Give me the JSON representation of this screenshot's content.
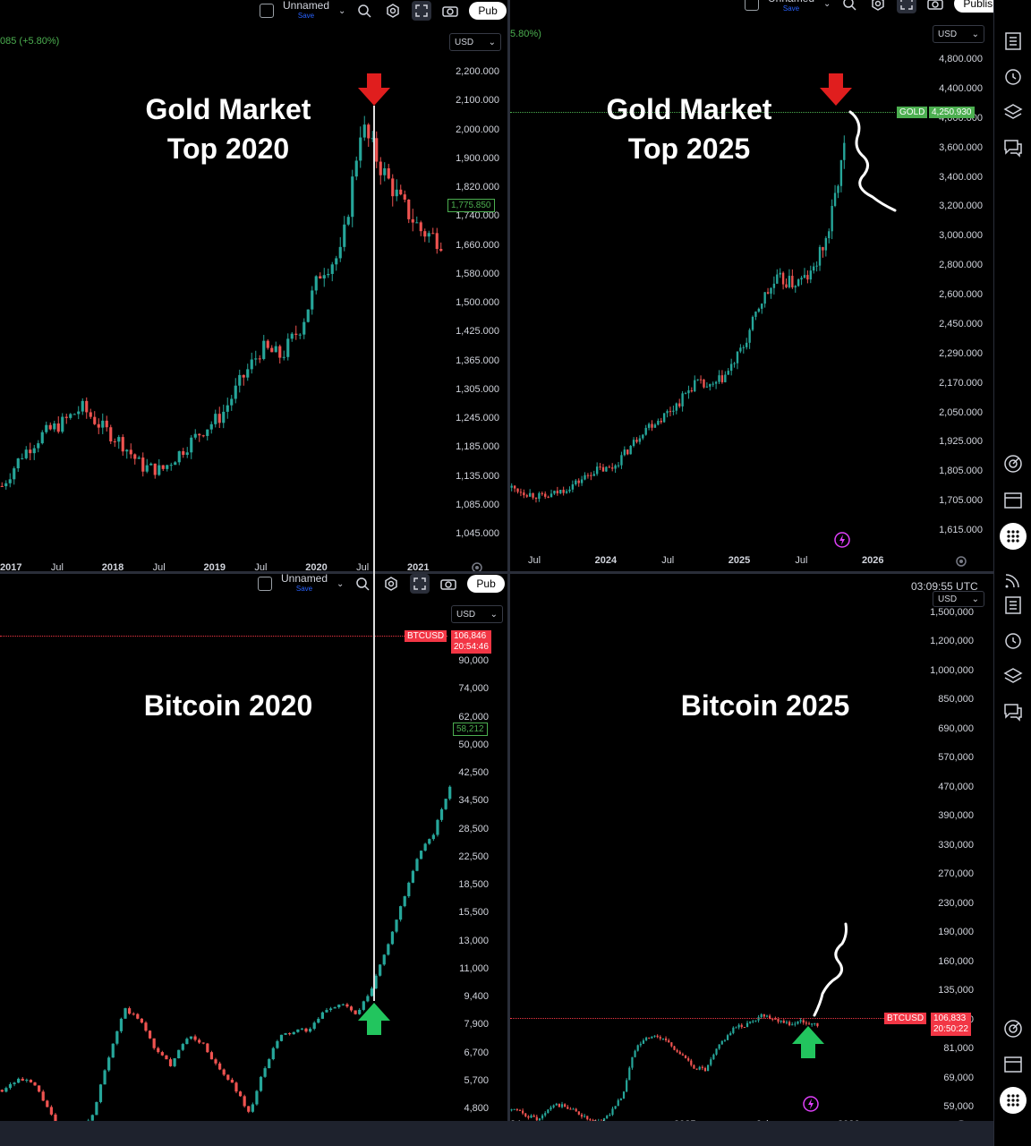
{
  "toolbar": {
    "layout_name": "Unnamed",
    "save_label": "Save",
    "publish_label": "Publish",
    "publish_label_short": "Pub"
  },
  "top_left": {
    "title_line1": "Gold Market",
    "title_line2": "Top 2020",
    "change_text": "085 (+5.80%)",
    "currency": "USD",
    "price_tag": "1,775.850",
    "y_ticks": [
      "2,200.000",
      "2,100.000",
      "2,000.000",
      "1,900.000",
      "1,820.000",
      "1,740.000",
      "1,660.000",
      "1,580.000",
      "1,500.000",
      "1,425.000",
      "1,365.000",
      "1,305.000",
      "1,245.000",
      "1,185.000",
      "1,135.000",
      "1,085.000",
      "1,045.000"
    ],
    "x_ticks": [
      {
        "label": "2017",
        "major": true
      },
      {
        "label": "Jul",
        "major": false
      },
      {
        "label": "2018",
        "major": true
      },
      {
        "label": "Jul",
        "major": false
      },
      {
        "label": "2019",
        "major": true
      },
      {
        "label": "Jul",
        "major": false
      },
      {
        "label": "2020",
        "major": true
      },
      {
        "label": "Jul",
        "major": false
      },
      {
        "label": "2021",
        "major": true
      }
    ]
  },
  "top_right": {
    "title_line1": "Gold Market",
    "title_line2": "Top 2025",
    "change_text": "5.80%)",
    "currency": "USD",
    "symbol_tag": "GOLD",
    "price_tag": "4,250.930",
    "y_ticks": [
      "4,800.000",
      "4,400.000",
      "4,000.000",
      "3,600.000",
      "3,400.000",
      "3,200.000",
      "3,000.000",
      "2,800.000",
      "2,600.000",
      "2,450.000",
      "2,290.000",
      "2,170.000",
      "2,050.000",
      "1,925.000",
      "1,805.000",
      "1,705.000",
      "1,615.000"
    ],
    "x_ticks": [
      {
        "label": "Jul",
        "major": false
      },
      {
        "label": "2024",
        "major": true
      },
      {
        "label": "Jul",
        "major": false
      },
      {
        "label": "2025",
        "major": true
      },
      {
        "label": "Jul",
        "major": false
      },
      {
        "label": "2026",
        "major": true
      }
    ]
  },
  "bottom_left": {
    "title": "Bitcoin 2020",
    "currency": "USD",
    "symbol_tag": "BTCUSD",
    "price_tag": "106,846",
    "countdown": "20:54:46",
    "last_price_tag": "58,212",
    "y_ticks": [
      "90,000",
      "74,000",
      "62,000",
      "50,000",
      "42,500",
      "34,500",
      "28,500",
      "22,500",
      "18,500",
      "15,500",
      "13,000",
      "11,000",
      "9,400",
      "7,900",
      "6,700",
      "5,700",
      "4,800"
    ],
    "x_ticks": [
      {
        "label": "Jul",
        "major": false
      },
      {
        "label": "2019",
        "major": true
      },
      {
        "label": "Jul",
        "major": false
      },
      {
        "label": "2020",
        "major": true
      },
      {
        "label": "Jul",
        "major": false
      },
      {
        "label": "2021",
        "major": true
      }
    ]
  },
  "bottom_right": {
    "title": "Bitcoin 2025",
    "clock": "03:09:55 UTC",
    "currency": "USD",
    "symbol_tag": "BTCUSD",
    "price_tag": "106,833",
    "countdown": "20:50:22",
    "y_ticks": [
      "1,500,000",
      "1,200,000",
      "1,000,000",
      "850,000",
      "690,000",
      "570,000",
      "470,000",
      "390,000",
      "330,000",
      "270,000",
      "230,000",
      "190,000",
      "160,000",
      "135,000",
      "115,000",
      "81,000",
      "69,000",
      "59,000"
    ],
    "x_ticks": [
      {
        "label": "24",
        "major": false
      },
      {
        "label": "Jul",
        "major": false
      },
      {
        "label": "2025",
        "major": true
      },
      {
        "label": "Jul",
        "major": false
      },
      {
        "label": "2026",
        "major": true
      }
    ]
  },
  "colors": {
    "up": "#26a69a",
    "down": "#ef5350",
    "red_arrow": "#e01e1e",
    "green_arrow": "#22c55e",
    "gold_tag": "#4caf50",
    "btc_tag": "#f23645"
  },
  "chart_data": [
    {
      "type": "line",
      "title": "Gold Market Top 2020",
      "series": [
        {
          "values": [
            1150,
            1230,
            1280,
            1310,
            1350,
            1300,
            1260,
            1200,
            1190,
            1240,
            1290,
            1330,
            1420,
            1500,
            1480,
            1560,
            1700,
            1740,
            2070,
            1960,
            1870,
            1800,
            1775
          ]
        }
      ],
      "ylim": [
        1020,
        2250
      ],
      "annotation": "top marked Aug 2020"
    },
    {
      "type": "line",
      "title": "Gold Market Top 2025",
      "series": [
        {
          "values": [
            1920,
            1880,
            1850,
            1900,
            1960,
            2040,
            2050,
            2180,
            2330,
            2400,
            2500,
            2640,
            2600,
            2710,
            2900,
            3200,
            3350,
            3320,
            3380,
            3650,
            4250
          ]
        }
      ],
      "ylim": [
        1580,
        4900
      ],
      "annotation": "top marked Oct 2025"
    },
    {
      "type": "line",
      "title": "Bitcoin 2020",
      "series": [
        {
          "values": [
            6000,
            6500,
            6300,
            5200,
            3800,
            4000,
            5200,
            8000,
            11000,
            10000,
            8000,
            7200,
            9000,
            8500,
            7000,
            6200,
            5000,
            7000,
            9000,
            9300,
            9500,
            11000,
            11500,
            10500,
            13000,
            18000,
            25000,
            35000,
            42000,
            58212
          ]
        }
      ],
      "ylim": [
        4500,
        100000
      ],
      "annotation": "breakout marked Oct 2020"
    },
    {
      "type": "line",
      "title": "Bitcoin 2025",
      "series": [
        {
          "values": [
            62000,
            60000,
            58000,
            64000,
            63000,
            60000,
            56000,
            60000,
            68000,
            95000,
            100000,
            98000,
            90000,
            82000,
            80000,
            95000,
            105000,
            108000,
            115000,
            112000,
            108000,
            110000,
            106833
          ]
        }
      ],
      "ylim": [
        55000,
        1600000
      ],
      "annotation": "breakout marked Oct 2025"
    }
  ]
}
